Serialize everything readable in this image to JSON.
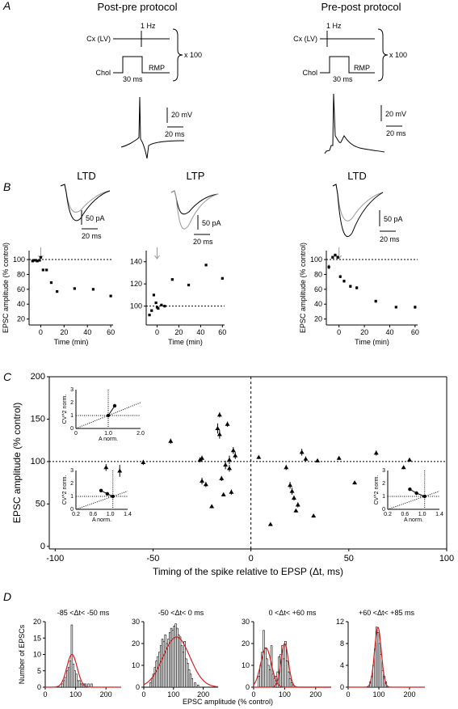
{
  "panel_letters": [
    "A",
    "B",
    "C",
    "D"
  ],
  "panel_a": {
    "titles": [
      "Post-pre protocol",
      "Pre-post protocol"
    ],
    "protocol": {
      "cx_label": "Cx (LV)",
      "freq": "1 Hz",
      "chol": "Chol",
      "rmp": "RMP",
      "dur": "30 ms",
      "reps": "x 100"
    },
    "scale_mv": "20 mV",
    "scale_ms": "20 ms"
  },
  "panel_b": {
    "titles": [
      "LTD",
      "LTP",
      "LTD"
    ],
    "scale_pa": "50 pA",
    "scale_ms": "20 ms"
  },
  "chart_data": [
    {
      "id": "B-left",
      "type": "scatter",
      "xlabel": "Time (min)",
      "ylabel": "EPSC amplitude (% control)",
      "xlim": [
        -10,
        62
      ],
      "ylim": [
        12,
        112
      ],
      "xticks": [
        0,
        20,
        40,
        60
      ],
      "yticks": [
        20,
        40,
        60,
        80,
        100
      ],
      "reference_y": 100,
      "arrow_x": 0,
      "x": [
        -7,
        -5,
        -3,
        -1,
        0,
        2,
        5,
        9,
        14,
        29,
        45,
        60
      ],
      "y": [
        98,
        99,
        98,
        99,
        103,
        86,
        86,
        69,
        57,
        61,
        60,
        51
      ]
    },
    {
      "id": "B-middle",
      "type": "scatter",
      "xlabel": "Time (min)",
      "ylabel": "",
      "xlim": [
        -10,
        62
      ],
      "ylim": [
        83,
        150
      ],
      "xticks": [
        0,
        20,
        40,
        60
      ],
      "yticks": [
        100,
        120,
        140
      ],
      "reference_y": 100,
      "arrow_x": 0,
      "x": [
        -7,
        -5,
        -3,
        -1,
        0,
        1,
        4,
        7,
        14,
        29,
        45,
        60
      ],
      "y": [
        92,
        96,
        110,
        103,
        99,
        98,
        101,
        100,
        124,
        119,
        137,
        125
      ]
    },
    {
      "id": "B-right",
      "type": "scatter",
      "xlabel": "Time (min)",
      "ylabel": "EPSC amplitude (% control)",
      "xlim": [
        -10,
        62
      ],
      "ylim": [
        12,
        112
      ],
      "xticks": [
        0,
        20,
        40,
        60
      ],
      "yticks": [
        20,
        40,
        60,
        80,
        100
      ],
      "reference_y": 100,
      "arrow_x": 0,
      "x": [
        -8,
        -5,
        -3,
        -1,
        1,
        4,
        9,
        14,
        29,
        45,
        60
      ],
      "y": [
        90,
        103,
        106,
        103,
        77,
        71,
        64,
        62,
        44,
        36,
        36
      ],
      "err": [
        3,
        2,
        2,
        2,
        2,
        2,
        2,
        2,
        2,
        1,
        2
      ]
    },
    {
      "id": "C",
      "type": "scatter",
      "xlabel": "Timing of the spike relative to EPSP (Δt, ms)",
      "ylabel": "EPSC amplitude (% control)",
      "xlim": [
        -103,
        100
      ],
      "ylim": [
        -3,
        200
      ],
      "xticks": [
        -100,
        -50,
        0,
        50,
        100
      ],
      "yticks": [
        0,
        50,
        100,
        150,
        200
      ],
      "reference_y": 100,
      "reference_x": 0,
      "x": [
        -74,
        -67,
        -55,
        -41,
        -26,
        -25,
        -25,
        -23,
        -20,
        -17,
        -16,
        -16,
        -15,
        -14,
        -13,
        -12,
        -11,
        -11,
        -10,
        -9,
        -8,
        4,
        10,
        18,
        20,
        21,
        22,
        23,
        24,
        26,
        28,
        32,
        34,
        45,
        53,
        64,
        78,
        81
      ],
      "y": [
        93,
        89,
        99,
        124,
        102,
        104,
        77,
        73,
        47,
        139,
        155,
        132,
        80,
        61,
        96,
        144,
        102,
        92,
        64,
        113,
        107,
        105,
        26,
        93,
        72,
        65,
        57,
        42,
        49,
        111,
        103,
        36,
        101,
        104,
        75,
        110,
        93,
        102
      ],
      "err": [
        4,
        7,
        3,
        3,
        3,
        3,
        4,
        3,
        2,
        6,
        3,
        5,
        3,
        2,
        5,
        3,
        5,
        4,
        3,
        4,
        4,
        2,
        1,
        3,
        4,
        4,
        3,
        2,
        3,
        4,
        3,
        2,
        2,
        2,
        2,
        3,
        2,
        2
      ],
      "insets": [
        {
          "id": "C-inset-top",
          "xlabel": "A norm.",
          "ylabel": "CV^2 norm.",
          "xlim": [
            0,
            2.0
          ],
          "ylim": [
            0,
            3
          ],
          "xticks": [
            "0",
            "1.0",
            "2.0"
          ],
          "yticks": [
            "0",
            "1",
            "2",
            "3"
          ],
          "points": [
            [
              1.0,
              1.0
            ],
            [
              1.2,
              1.75
            ]
          ]
        },
        {
          "id": "C-inset-bottom-left",
          "xlabel": "A norm.",
          "ylabel": "CV^2 norm.",
          "xlim": [
            0,
            1.4
          ],
          "ylim": [
            0,
            3
          ],
          "xticks": [
            "0.2",
            "0.6",
            "1.0",
            "1.4"
          ],
          "yticks": [
            "0",
            "1",
            "2",
            "3"
          ],
          "points": [
            [
              0.68,
              1.45
            ],
            [
              0.85,
              1.2
            ],
            [
              1.0,
              1.0
            ]
          ]
        },
        {
          "id": "C-inset-bottom-right",
          "xlabel": "A norm.",
          "ylabel": "CV^2 norm.",
          "xlim": [
            0,
            1.4
          ],
          "ylim": [
            0,
            3
          ],
          "xticks": [
            "0.2",
            "0.6",
            "1.0",
            "1.4"
          ],
          "yticks": [
            "0",
            "1",
            "2",
            "3"
          ],
          "points": [
            [
              0.6,
              1.55
            ],
            [
              0.78,
              1.25
            ],
            [
              1.0,
              1.0
            ]
          ]
        }
      ]
    },
    {
      "id": "D1",
      "type": "bar",
      "title": "-85 <Δt< -50 ms",
      "xlabel": "EPSC amplitude (% control)",
      "ylabel": "Number of EPSCs",
      "xlim": [
        0,
        250
      ],
      "ylim": [
        0,
        20
      ],
      "xticks": [
        0,
        100,
        200
      ],
      "yticks": [
        0,
        5,
        10,
        15,
        20
      ],
      "bin_width": 5,
      "bins": [
        55,
        60,
        65,
        70,
        75,
        80,
        85,
        90,
        95,
        100,
        105,
        110,
        115,
        120,
        125,
        130,
        140,
        150
      ],
      "counts": [
        1,
        2,
        3,
        5,
        6,
        8,
        19,
        7,
        5,
        4,
        2,
        2,
        1,
        1,
        1,
        1,
        1,
        1
      ],
      "fit": {
        "mean": [
          88
        ],
        "sd": [
          17
        ],
        "amp": [
          10
        ]
      }
    },
    {
      "id": "D2",
      "type": "bar",
      "title": "-50 <Δt< 0 ms",
      "xlabel": "EPSC amplitude (% control)",
      "ylabel": "",
      "xlim": [
        0,
        250
      ],
      "ylim": [
        0,
        30
      ],
      "xticks": [
        0,
        100,
        200
      ],
      "yticks": [
        0,
        10,
        20,
        30
      ],
      "bin_width": 5,
      "bins": [
        20,
        25,
        30,
        35,
        40,
        45,
        50,
        55,
        60,
        65,
        70,
        75,
        80,
        85,
        90,
        95,
        100,
        105,
        110,
        115,
        120,
        125,
        130,
        135,
        140,
        145,
        150,
        155,
        160,
        170,
        180
      ],
      "counts": [
        2,
        4,
        6,
        9,
        12,
        14,
        16,
        19,
        22,
        21,
        24,
        20,
        22,
        25,
        27,
        26,
        28,
        29,
        27,
        24,
        23,
        19,
        16,
        21,
        13,
        11,
        8,
        6,
        4,
        2,
        1
      ],
      "fit": {
        "mean": [
          110
        ],
        "sd": [
          45
        ],
        "amp": [
          23
        ]
      }
    },
    {
      "id": "D3",
      "type": "bar",
      "title": "0 <Δt< +60 ms",
      "xlabel": "EPSC amplitude (% control)",
      "ylabel": "",
      "xlim": [
        0,
        250
      ],
      "ylim": [
        0,
        30
      ],
      "xticks": [
        0,
        100,
        200
      ],
      "yticks": [
        0,
        10,
        20,
        30
      ],
      "bin_width": 5,
      "bins": [
        15,
        20,
        25,
        30,
        35,
        40,
        45,
        50,
        55,
        60,
        65,
        70,
        75,
        80,
        85,
        90,
        95,
        100,
        105,
        110,
        115,
        120,
        125
      ],
      "counts": [
        5,
        10,
        16,
        26,
        18,
        13,
        10,
        8,
        19,
        6,
        4,
        5,
        7,
        14,
        15,
        19,
        13,
        21,
        12,
        7,
        4,
        2,
        1
      ],
      "fit": {
        "mean": [
          40,
          100
        ],
        "sd": [
          17,
          12
        ],
        "amp": [
          18,
          20
        ]
      }
    },
    {
      "id": "D4",
      "type": "bar",
      "title": "+60 <Δt< +85 ms",
      "xlabel": "EPSC amplitude (% control)",
      "ylabel": "",
      "xlim": [
        0,
        250
      ],
      "ylim": [
        0,
        12
      ],
      "xticks": [
        0,
        100,
        200
      ],
      "yticks": [
        0,
        4,
        8,
        12
      ],
      "bin_width": 5,
      "bins": [
        70,
        75,
        80,
        85,
        90,
        95,
        100,
        105,
        110,
        115,
        120
      ],
      "counts": [
        1,
        2,
        4,
        7,
        11,
        10,
        8,
        6,
        3,
        2,
        1
      ],
      "fit": {
        "mean": [
          97
        ],
        "sd": [
          11
        ],
        "amp": [
          11
        ]
      }
    }
  ]
}
